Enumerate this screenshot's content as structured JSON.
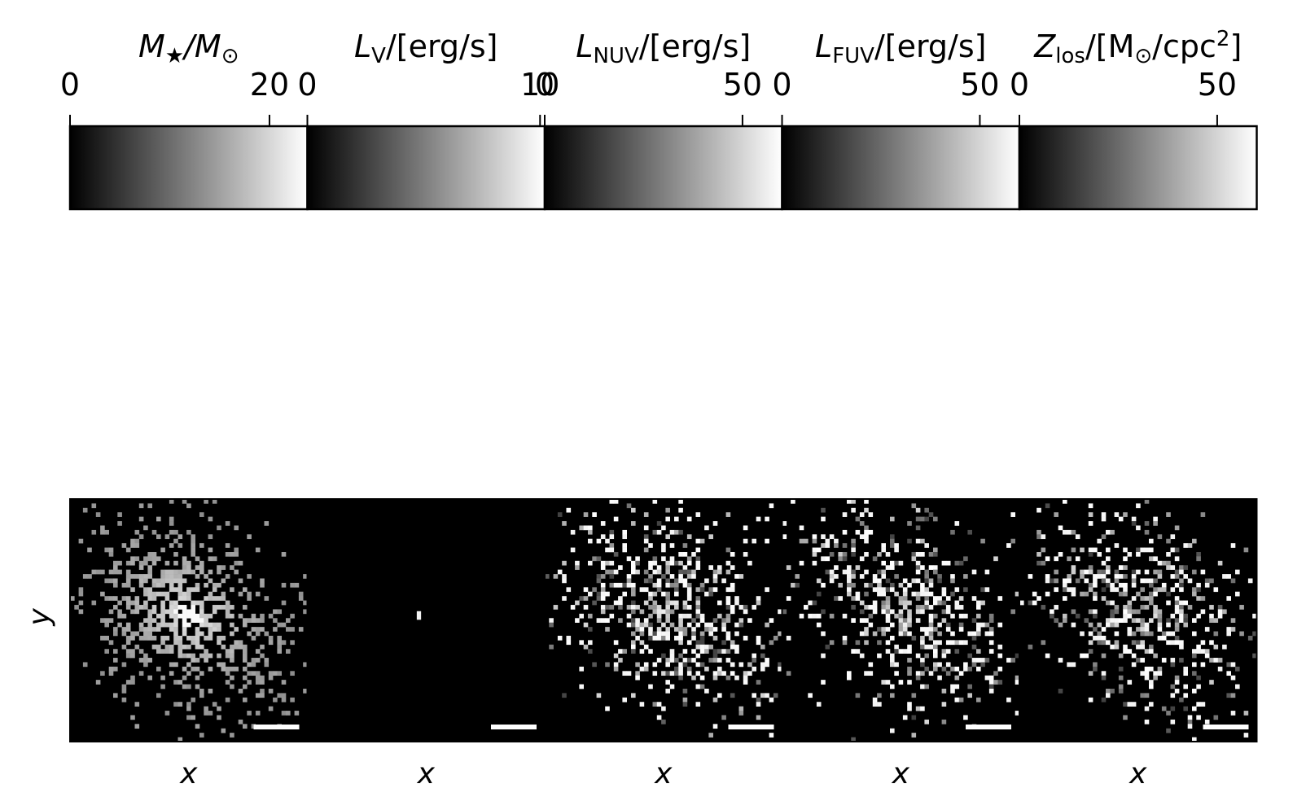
{
  "chart_data": {
    "type": "heatmap",
    "colormap": "gray",
    "background": "#000000",
    "y_axis_label": "y",
    "panels": [
      {
        "colorbar": {
          "label": "M★/M⊙",
          "label_main": "M",
          "label_sub": "★",
          "label_rest": "/M",
          "label_sub2": "⊙",
          "label_end": "",
          "ticks": [
            0,
            20
          ],
          "tick_labels": [
            "0",
            "20"
          ],
          "range": [
            0,
            23.8
          ]
        },
        "xlabel": "x",
        "image": {
          "center": [
            0.5,
            0.48
          ],
          "spread": 0.24,
          "fill": 0.62,
          "peak_value": 0.82,
          "hot_core": true,
          "diffuse": true,
          "seed": 11
        }
      },
      {
        "colorbar": {
          "label": "LV/[erg/s]",
          "label_main": "L",
          "label_sub": "V",
          "label_rest": "/[erg/s]",
          "label_sub2": "",
          "label_end": "",
          "ticks": [
            0,
            10
          ],
          "tick_labels": [
            "0",
            "10"
          ],
          "range": [
            0,
            10.2
          ]
        },
        "xlabel": "x",
        "image": {
          "center": [
            0.47,
            0.48
          ],
          "spread": 0.0,
          "fill": 0.0,
          "peak_value": 0.95,
          "point_source": true,
          "seed": 3
        }
      },
      {
        "colorbar": {
          "label": "LNUV/[erg/s]",
          "label_main": "L",
          "label_sub": "NUV",
          "label_rest": "/[erg/s]",
          "label_sub2": "",
          "label_end": "",
          "ticks": [
            0,
            50
          ],
          "tick_labels": [
            "0",
            "50"
          ],
          "range": [
            0,
            60
          ]
        },
        "xlabel": "x",
        "image": {
          "center": [
            0.52,
            0.46
          ],
          "spread": 0.26,
          "fill": 0.52,
          "peak_value": 0.95,
          "hot_core": false,
          "diffuse": false,
          "seed": 29
        }
      },
      {
        "colorbar": {
          "label": "LFUV/[erg/s]",
          "label_main": "L",
          "label_sub": "FUV",
          "label_rest": "/[erg/s]",
          "label_sub2": "",
          "label_end": "",
          "ticks": [
            0,
            50
          ],
          "tick_labels": [
            "0",
            "50"
          ],
          "range": [
            0,
            60
          ]
        },
        "xlabel": "x",
        "image": {
          "center": [
            0.52,
            0.46
          ],
          "spread": 0.26,
          "fill": 0.48,
          "peak_value": 0.95,
          "hot_core": false,
          "diffuse": false,
          "seed": 47
        }
      },
      {
        "colorbar": {
          "label": "Zlos/[M⊙/cpc2]",
          "label_main": "Z",
          "label_sub": "los",
          "label_rest": "/[M",
          "label_sub2": "⊙",
          "label_end": "/cpc",
          "label_sup": "2",
          "label_close": "]",
          "ticks": [
            0,
            50
          ],
          "tick_labels": [
            "0",
            "50"
          ],
          "range": [
            0,
            60
          ]
        },
        "xlabel": "x",
        "image": {
          "center": [
            0.52,
            0.46
          ],
          "spread": 0.26,
          "fill": 0.45,
          "peak_value": 0.9,
          "hot_core": false,
          "diffuse": false,
          "seed": 71
        }
      }
    ],
    "scale_bar": true,
    "grid": false
  }
}
